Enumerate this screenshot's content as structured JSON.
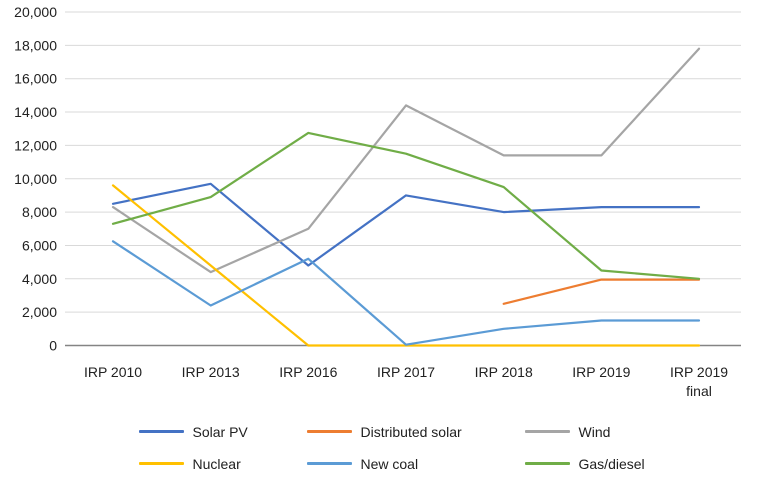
{
  "chart_data": {
    "type": "line",
    "title": "",
    "xlabel": "",
    "ylabel": "",
    "categories": [
      "IRP 2010",
      "IRP 2013",
      "IRP 2016",
      "IRP 2017",
      "IRP 2018",
      "IRP 2019",
      "IRP 2019\nfinal"
    ],
    "series": [
      {
        "name": "Solar PV",
        "color": "#4472C4",
        "values": [
          8500,
          9700,
          4800,
          9000,
          8000,
          8300,
          8300
        ]
      },
      {
        "name": "Distributed solar",
        "color": "#ED7D31",
        "values": [
          null,
          null,
          null,
          null,
          2500,
          3950,
          3950
        ]
      },
      {
        "name": "Wind",
        "color": "#A5A5A5",
        "values": [
          8300,
          4400,
          7000,
          14400,
          11400,
          11400,
          17800
        ]
      },
      {
        "name": "Nuclear",
        "color": "#FFC000",
        "values": [
          9600,
          4800,
          0,
          0,
          0,
          0,
          0
        ]
      },
      {
        "name": "New coal",
        "color": "#5B9BD5",
        "values": [
          6250,
          2400,
          5200,
          50,
          1000,
          1500,
          1500
        ]
      },
      {
        "name": "Gas/diesel",
        "color": "#70AD47",
        "values": [
          7300,
          8900,
          12750,
          11500,
          9500,
          4500,
          4000
        ]
      }
    ],
    "ylim": [
      0,
      20000
    ],
    "ytick_step": 2000,
    "y_tick_labels": [
      "0",
      "2,000",
      "4,000",
      "6,000",
      "8,000",
      "10,000",
      "12,000",
      "14,000",
      "16,000",
      "18,000",
      "20,000"
    ],
    "grid": true,
    "grid_color": "#d9d9d9",
    "axis_line_color": "#848484",
    "text_color": "#212121",
    "legend_position": "bottom",
    "legend_rows": [
      [
        "Solar PV",
        "Distributed solar",
        "Wind"
      ],
      [
        "Nuclear",
        "New coal",
        "Gas/diesel"
      ]
    ]
  }
}
